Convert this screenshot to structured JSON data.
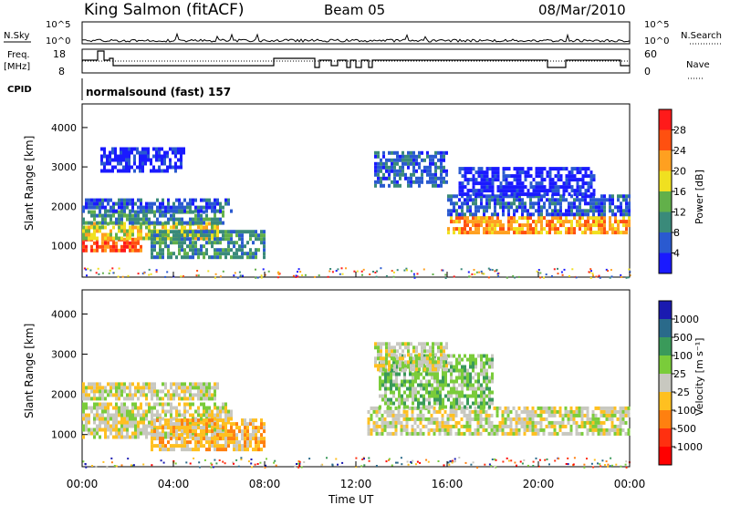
{
  "header": {
    "station": "King Salmon (fitACF)",
    "beam": "Beam 05",
    "date": "08/Mar/2010"
  },
  "top_panel": {
    "nsky_label": "N.Sky",
    "nsearch_label": "N.Search",
    "left_ticks": [
      "10^5",
      "10^0"
    ],
    "right_ticks": [
      "10^5",
      "10^0"
    ],
    "freq_label": "Freq.",
    "freq_unit": "[MHz]",
    "freq_ticks": [
      "18",
      "8"
    ],
    "nave_label": "Nave",
    "nave_ticks": [
      "60",
      "0"
    ],
    "cpid_label": "CPID",
    "cpid_value": "normalsound (fast) 157"
  },
  "chart_data": [
    {
      "type": "heatmap",
      "title": "",
      "xlabel": "Time UT",
      "ylabel": "Slant Range [km]",
      "x_ticks": [
        "00:00",
        "04:00",
        "08:00",
        "12:00",
        "16:00",
        "20:00",
        "00:00"
      ],
      "xlim_hours": [
        0,
        24
      ],
      "ylim": [
        200,
        4600
      ],
      "y_ticks": [
        1000,
        2000,
        3000,
        4000
      ],
      "colorbar": {
        "label": "Power [dB]",
        "ticks": [
          "4",
          "8",
          "12",
          "16",
          "20",
          "24",
          "28"
        ],
        "colors": [
          "#1a1aff",
          "#2a5ad0",
          "#3a8a7a",
          "#62b04a",
          "#f0e020",
          "#ffa020",
          "#ff5010",
          "#ff1a1a"
        ]
      },
      "bands": [
        {
          "t": [
            0.0,
            2.6
          ],
          "range": [
            900,
            1200
          ],
          "level": 6
        },
        {
          "t": [
            0.0,
            6.0
          ],
          "range": [
            1200,
            1600
          ],
          "level": 4
        },
        {
          "t": [
            0.0,
            6.2
          ],
          "range": [
            1600,
            1900
          ],
          "level": 2
        },
        {
          "t": [
            0.0,
            6.6
          ],
          "range": [
            1900,
            2200
          ],
          "level": 1
        },
        {
          "t": [
            3.0,
            8.0
          ],
          "range": [
            700,
            1400
          ],
          "level": 2
        },
        {
          "t": [
            0.8,
            4.5
          ],
          "range": [
            2900,
            3500
          ],
          "level": 0
        },
        {
          "t": [
            12.8,
            16.0
          ],
          "range": [
            2500,
            3400
          ],
          "level": 1
        },
        {
          "t": [
            16.0,
            24.0
          ],
          "range": [
            1350,
            1750
          ],
          "level": 5
        },
        {
          "t": [
            16.0,
            24.0
          ],
          "range": [
            1750,
            2300
          ],
          "level": 1
        },
        {
          "t": [
            16.5,
            22.5
          ],
          "range": [
            2300,
            3000
          ],
          "level": 0
        }
      ]
    },
    {
      "type": "heatmap",
      "title": "",
      "xlabel": "Time UT",
      "ylabel": "Slant Range [km]",
      "x_ticks": [
        "00:00",
        "04:00",
        "08:00",
        "12:00",
        "16:00",
        "20:00",
        "00:00"
      ],
      "xlim_hours": [
        0,
        24
      ],
      "ylim": [
        200,
        4600
      ],
      "y_ticks": [
        1000,
        2000,
        3000,
        4000
      ],
      "colorbar": {
        "label": "Velocity [m s⁻¹]",
        "ticks": [
          "1000",
          "500",
          "100",
          "25",
          "-25",
          "-100",
          "-500",
          "-1000"
        ],
        "colors": [
          "#1a1ab0",
          "#2a6a8a",
          "#3a9a5a",
          "#7acc3a",
          "#c8c8c0",
          "#ffc020",
          "#ff8010",
          "#ff3010",
          "#ff0000"
        ]
      },
      "bands": [
        {
          "t": [
            0.0,
            6.6
          ],
          "range": [
            900,
            1800
          ],
          "level": 4
        },
        {
          "t": [
            0.0,
            6.0
          ],
          "range": [
            1900,
            2300
          ],
          "level": 4
        },
        {
          "t": [
            3.0,
            8.0
          ],
          "range": [
            600,
            1400
          ],
          "level": 5
        },
        {
          "t": [
            12.5,
            24.0
          ],
          "range": [
            1000,
            1700
          ],
          "level": 4
        },
        {
          "t": [
            13.0,
            18.0
          ],
          "range": [
            1700,
            3000
          ],
          "level": 3
        },
        {
          "t": [
            12.8,
            16.0
          ],
          "range": [
            2600,
            3300
          ],
          "level": 4
        }
      ]
    }
  ]
}
